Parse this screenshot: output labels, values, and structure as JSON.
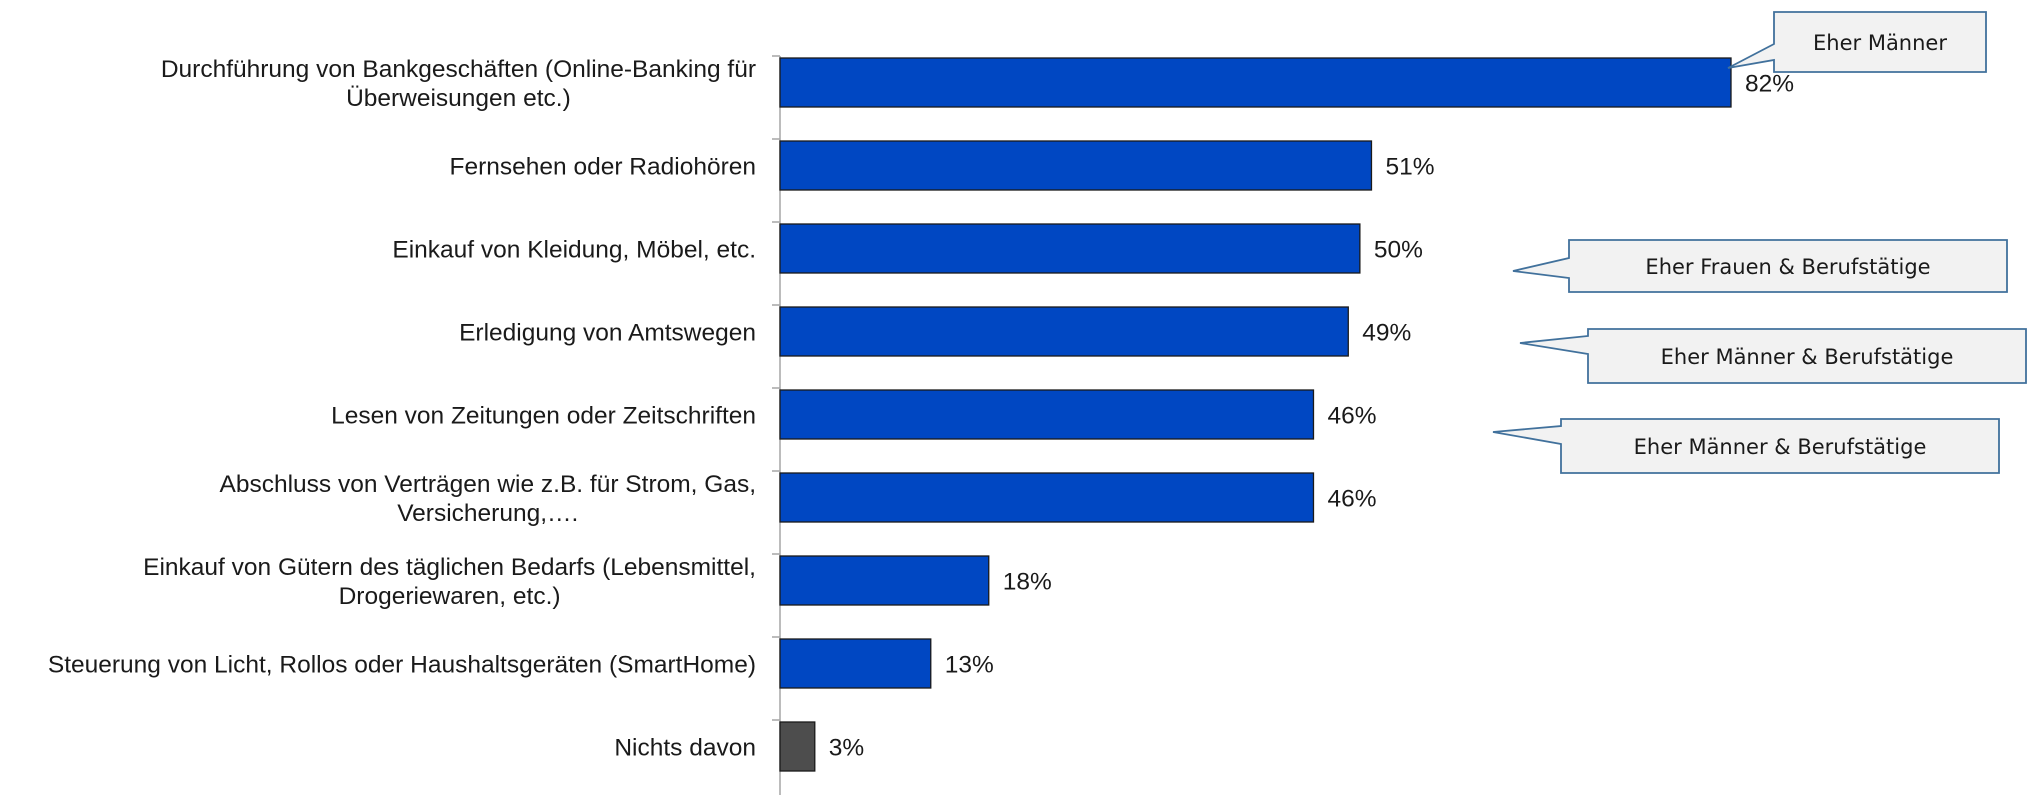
{
  "chart_data": {
    "type": "bar",
    "orientation": "horizontal",
    "categories": [
      [
        "Durchführung von Bankgeschäften (Online-Banking für",
        "Überweisungen etc.)"
      ],
      [
        "Fernsehen oder Radiohören"
      ],
      [
        "Einkauf von Kleidung, Möbel, etc."
      ],
      [
        "Erledigung von Amtswegen"
      ],
      [
        "Lesen von Zeitungen oder Zeitschriften"
      ],
      [
        "Abschluss von Verträgen wie z.B. für Strom, Gas,",
        "Versicherung,…."
      ],
      [
        "Einkauf von Gütern des täglichen Bedarfs (Lebensmittel,",
        "Drogeriewaren, etc.)"
      ],
      [
        "Steuerung von Licht, Rollos oder Haushaltsgeräten (SmartHome)"
      ],
      [
        "Nichts davon"
      ]
    ],
    "values": [
      82,
      51,
      50,
      49,
      46,
      46,
      18,
      13,
      3
    ],
    "value_labels": [
      "82%",
      "51%",
      "50%",
      "49%",
      "46%",
      "46%",
      "18%",
      "13%",
      "3%"
    ],
    "bar_colors": [
      "#0047c2",
      "#0047c2",
      "#0047c2",
      "#0047c2",
      "#0047c2",
      "#0047c2",
      "#0047c2",
      "#0047c2",
      "#4d4d4d"
    ],
    "xlim": [
      0,
      100
    ],
    "grid": false,
    "annotations": [
      {
        "text": "Eher Männer",
        "category_index": 0
      },
      {
        "text": "Eher Frauen & Berufstätige",
        "category_index": 2
      },
      {
        "text": "Eher Männer & Berufstätige",
        "category_index": 3
      },
      {
        "text": "Eher Männer & Berufstätige",
        "category_index": 4
      }
    ]
  },
  "colors": {
    "bar_stroke": "#1a1a1a",
    "axis": "#a6a6a6",
    "callout_fill": "#f2f2f2",
    "callout_stroke": "#41719c"
  }
}
